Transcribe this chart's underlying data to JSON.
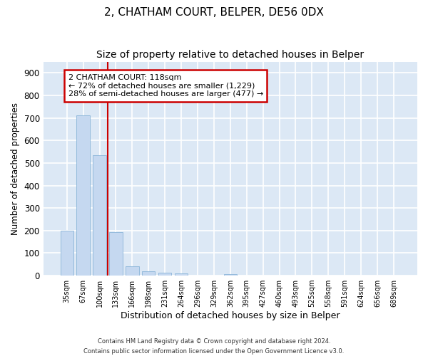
{
  "title1": "2, CHATHAM COURT, BELPER, DE56 0DX",
  "title2": "Size of property relative to detached houses in Belper",
  "xlabel": "Distribution of detached houses by size in Belper",
  "ylabel": "Number of detached properties",
  "categories": [
    "35sqm",
    "67sqm",
    "100sqm",
    "133sqm",
    "166sqm",
    "198sqm",
    "231sqm",
    "264sqm",
    "296sqm",
    "329sqm",
    "362sqm",
    "395sqm",
    "427sqm",
    "460sqm",
    "493sqm",
    "525sqm",
    "558sqm",
    "591sqm",
    "624sqm",
    "656sqm",
    "689sqm"
  ],
  "values": [
    200,
    710,
    535,
    192,
    42,
    18,
    13,
    9,
    0,
    0,
    8,
    0,
    0,
    0,
    0,
    0,
    0,
    0,
    0,
    0,
    0
  ],
  "bar_color": "#c5d8f0",
  "bar_edge_color": "#8ab4d8",
  "vline_x": 2.5,
  "vline_color": "#cc0000",
  "annotation_line1": "2 CHATHAM COURT: 118sqm",
  "annotation_line2": "← 72% of detached houses are smaller (1,229)",
  "annotation_line3": "28% of semi-detached houses are larger (477) →",
  "annotation_box_color": "#ffffff",
  "annotation_box_edge": "#cc0000",
  "ylim": [
    0,
    950
  ],
  "yticks": [
    0,
    100,
    200,
    300,
    400,
    500,
    600,
    700,
    800,
    900
  ],
  "footnote_line1": "Contains HM Land Registry data © Crown copyright and database right 2024.",
  "footnote_line2": "Contains public sector information licensed under the Open Government Licence v3.0.",
  "bg_color": "#ffffff",
  "plot_bg_color": "#dce8f5",
  "grid_color": "#ffffff",
  "title1_fontsize": 11,
  "title2_fontsize": 10
}
